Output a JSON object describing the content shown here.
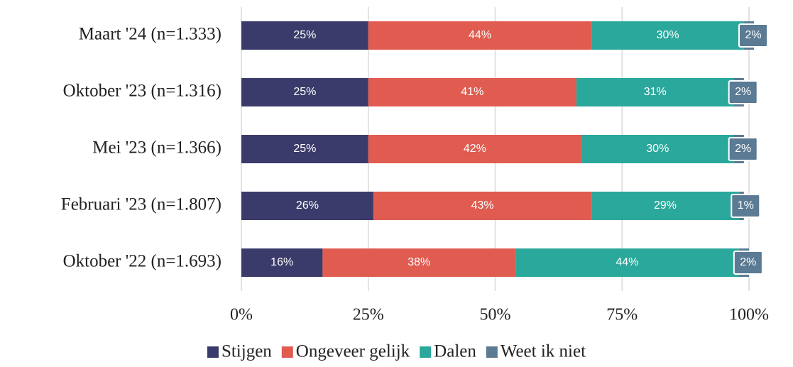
{
  "chart_data": {
    "type": "stacked-bar-horizontal",
    "categories": [
      "Maart '24 (n=1.333)",
      "Oktober '23 (n=1.316)",
      "Mei '23 (n=1.366)",
      "Februari '23 (n=1.807)",
      "Oktober '22 (n=1.693)"
    ],
    "series": [
      {
        "name": "Stijgen",
        "color": "#3b3b6b",
        "values": [
          25,
          25,
          25,
          26,
          16
        ],
        "value_labels": [
          "25%",
          "25%",
          "25%",
          "26%",
          "16%"
        ]
      },
      {
        "name": "Ongeveer gelijk",
        "color": "#e05c50",
        "values": [
          44,
          41,
          42,
          43,
          38
        ],
        "value_labels": [
          "44%",
          "41%",
          "42%",
          "43%",
          "38%"
        ]
      },
      {
        "name": "Dalen",
        "color": "#2ba89c",
        "values": [
          30,
          31,
          30,
          29,
          44
        ],
        "value_labels": [
          "30%",
          "31%",
          "30%",
          "29%",
          "44%"
        ]
      },
      {
        "name": "Weet ik niet",
        "color": "#5b7a93",
        "values": [
          2,
          2,
          2,
          1,
          2
        ],
        "value_labels": [
          "2%",
          "2%",
          "2%",
          "1%",
          "2%"
        ]
      }
    ],
    "xlim": [
      0,
      100
    ],
    "xticks": [
      {
        "value": 0,
        "label": "0%"
      },
      {
        "value": 25,
        "label": "25%"
      },
      {
        "value": 50,
        "label": "50%"
      },
      {
        "value": 75,
        "label": "75%"
      },
      {
        "value": 100,
        "label": "100%"
      }
    ],
    "grid": true,
    "legend": "bottom"
  }
}
